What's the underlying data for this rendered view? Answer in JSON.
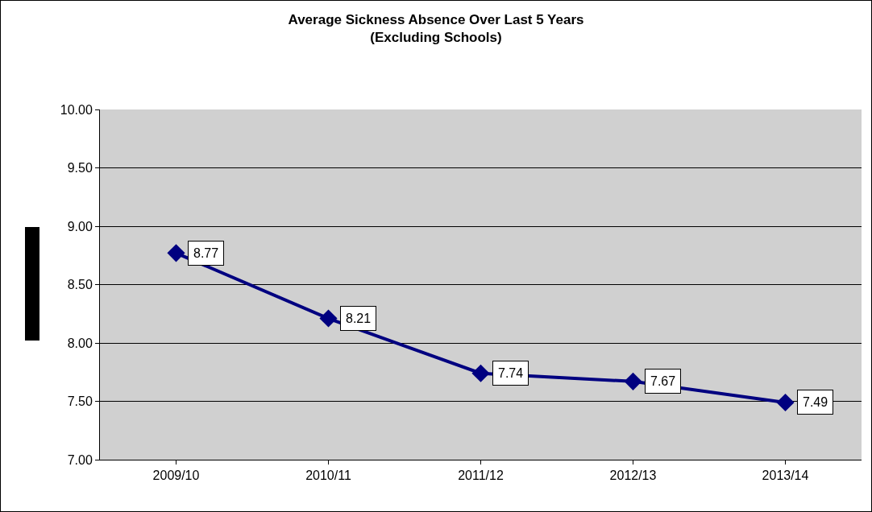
{
  "chart_data": {
    "type": "line",
    "title": "Average Sickness Absence Over Last 5 Years\n(Excluding Schools)",
    "categories": [
      "2009/10",
      "2010/11",
      "2011/12",
      "2012/13",
      "2013/14"
    ],
    "series": [
      {
        "color": "#000080",
        "values": [
          8.77,
          8.21,
          7.74,
          7.67,
          7.49
        ]
      }
    ],
    "ylim": [
      7,
      10
    ],
    "yticks": [
      "7.00",
      "7.50",
      "8.00",
      "8.50",
      "9.00",
      "9.50",
      "10.00"
    ],
    "data_labels": true,
    "grid": "y",
    "legend": false,
    "marker": "diamond",
    "line_style": "solid"
  }
}
